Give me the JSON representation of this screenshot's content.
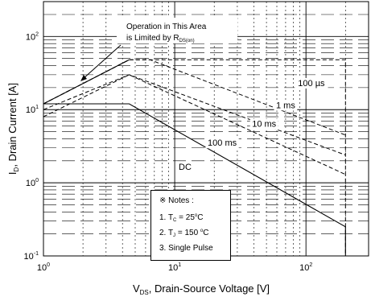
{
  "chart_data": {
    "type": "line",
    "xscale": "log",
    "yscale": "log",
    "xlim": [
      1,
      300
    ],
    "ylim": [
      0.1,
      300
    ],
    "grid": true,
    "x_ticks": [
      {
        "value": 1,
        "label": "10^0"
      },
      {
        "value": 10,
        "label": "10^1"
      },
      {
        "value": 100,
        "label": "10^2"
      }
    ],
    "y_ticks": [
      {
        "value": 0.1,
        "label": "10^-1"
      },
      {
        "value": 1,
        "label": "10^0"
      },
      {
        "value": 10,
        "label": "10^1"
      },
      {
        "value": 100,
        "label": "10^2"
      }
    ],
    "xlabel": {
      "base": "V",
      "sub": "DS",
      "rest": ", Drain-Source Voltage [V]"
    },
    "ylabel": {
      "base": "I",
      "sub": "D",
      "rest": ", Drain Current [A]"
    },
    "series": [
      {
        "name": "100 µs",
        "style": "dashed",
        "x": [
          1,
          4.5,
          6,
          200,
          200
        ],
        "y": [
          12,
          48,
          48,
          48,
          0.1
        ]
      },
      {
        "name": "1 ms",
        "style": "dashed",
        "x": [
          1,
          4.5,
          6.5,
          200
        ],
        "y": [
          12,
          48,
          48,
          4.5
        ]
      },
      {
        "name": "10 ms",
        "style": "dashed",
        "x": [
          1,
          4.5,
          200
        ],
        "y": [
          10,
          30,
          2.4
        ]
      },
      {
        "name": "100 ms",
        "style": "dashed",
        "x": [
          1,
          4.5,
          200
        ],
        "y": [
          8,
          30,
          1.3
        ]
      },
      {
        "name": "DC",
        "style": "solid",
        "x": [
          1,
          4.5,
          200,
          200
        ],
        "y": [
          12,
          12,
          0.25,
          0.1
        ]
      },
      {
        "name": "R_DS(on) limit",
        "style": "solid",
        "x": [
          1,
          4.5
        ],
        "y": [
          12,
          48
        ]
      }
    ],
    "annotations": {
      "rds": {
        "line1": "Operation in This Area",
        "line2": "is Limited by R",
        "sub": "DS(on)"
      },
      "curve_labels": [
        "100 µs",
        "1 ms",
        "10 ms",
        "100 ms",
        "DC"
      ]
    },
    "notes": {
      "title": "※ Notes :",
      "n1": {
        "pre": "1. T",
        "sub": "C",
        "post": " = 25",
        "sup": "o",
        "end": "C"
      },
      "n2": {
        "pre": "2. T",
        "sub": "J",
        "post": " = 150 ",
        "sup": "o",
        "end": "C"
      },
      "n3": "3. Single Pulse"
    }
  }
}
